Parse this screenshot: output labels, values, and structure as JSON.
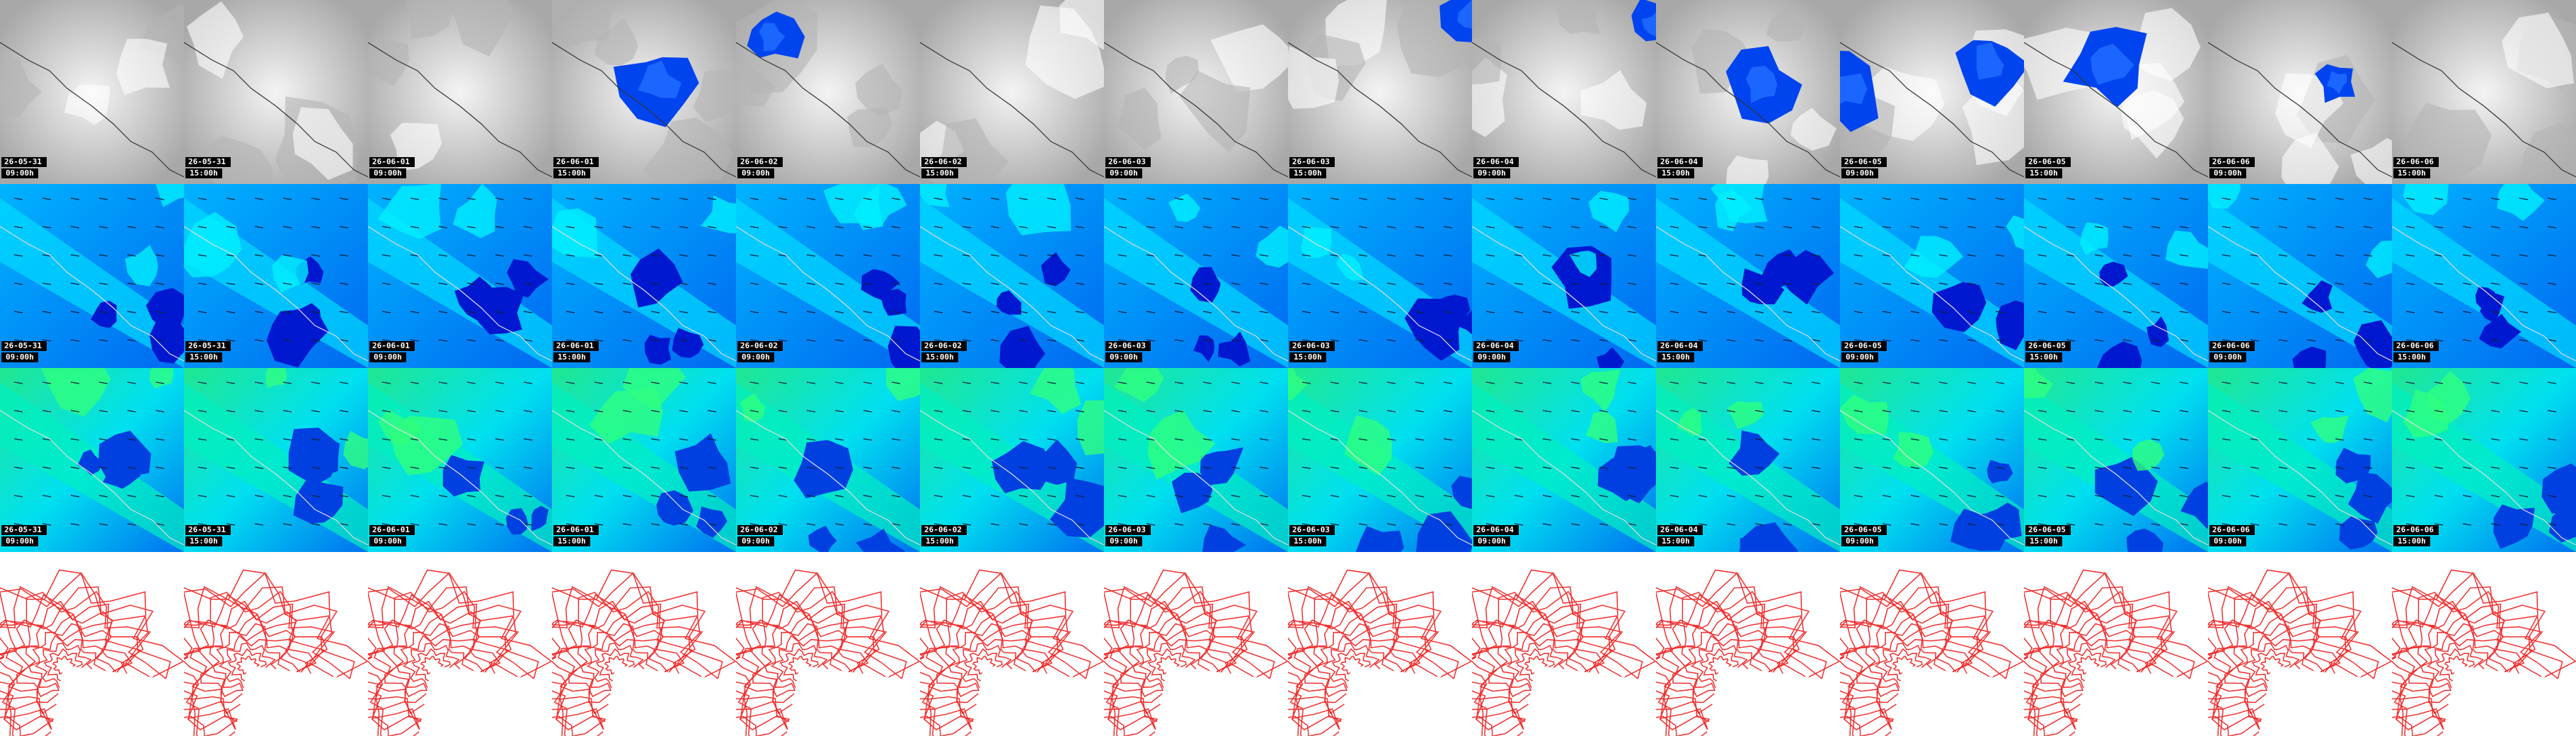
{
  "frames": [
    {
      "date": "26-05-31",
      "time": "09:00h"
    },
    {
      "date": "26-05-31",
      "time": "15:00h"
    },
    {
      "date": "26-06-01",
      "time": "09:00h"
    },
    {
      "date": "26-06-01",
      "time": "15:00h"
    },
    {
      "date": "26-06-02",
      "time": "09:00h"
    },
    {
      "date": "26-06-02",
      "time": "15:00h"
    },
    {
      "date": "26-06-03",
      "time": "09:00h"
    },
    {
      "date": "26-06-03",
      "time": "15:00h"
    },
    {
      "date": "26-06-04",
      "time": "09:00h"
    },
    {
      "date": "26-06-04",
      "time": "15:00h"
    },
    {
      "date": "26-06-05",
      "time": "09:00h"
    },
    {
      "date": "26-06-05",
      "time": "15:00h"
    },
    {
      "date": "26-06-06",
      "time": "09:00h"
    },
    {
      "date": "26-06-06",
      "time": "15:00h"
    }
  ]
}
